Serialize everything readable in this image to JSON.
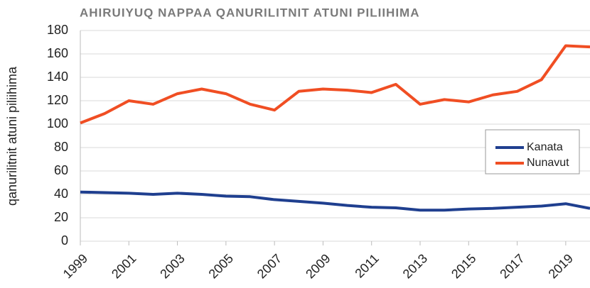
{
  "chart_data": {
    "type": "line",
    "title": "AHIRUIYUQ NAPPAA QANURILITNIT ATUNI PILIIHIMA",
    "y_label": "qanurilitnit atuni piliihima",
    "x": [
      1999,
      2000,
      2001,
      2002,
      2003,
      2004,
      2005,
      2006,
      2007,
      2008,
      2009,
      2010,
      2011,
      2012,
      2013,
      2014,
      2015,
      2016,
      2017,
      2018,
      2019,
      2020
    ],
    "series": [
      {
        "name": "Kanata",
        "color": "#1f3f8f",
        "values": [
          42,
          41.5,
          41,
          40,
          41,
          40,
          38.5,
          38,
          35.5,
          34,
          32.5,
          30.5,
          29,
          28.5,
          26.5,
          26.5,
          27.5,
          28,
          29,
          30,
          32,
          28
        ]
      },
      {
        "name": "Nunavut",
        "color": "#f04e23",
        "values": [
          101,
          109,
          120,
          117,
          126,
          130,
          126,
          117,
          112,
          128,
          130,
          129,
          127,
          134,
          117,
          121,
          119,
          125,
          128,
          138,
          167,
          166
        ]
      }
    ],
    "xlim": [
      1999,
      2020
    ],
    "xticks": [
      1999,
      2001,
      2003,
      2005,
      2007,
      2009,
      2011,
      2013,
      2015,
      2017,
      2019
    ],
    "ylim": [
      0,
      180
    ],
    "yticks": [
      0,
      20,
      40,
      60,
      80,
      100,
      120,
      140,
      160,
      180
    ],
    "grid": true,
    "legend": "right"
  }
}
